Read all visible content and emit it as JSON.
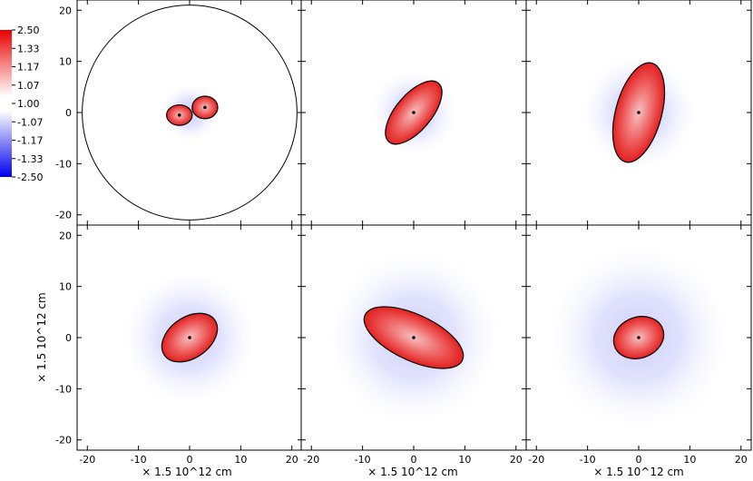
{
  "chart_data": {
    "type": "heatmap",
    "layout": "2 rows x 3 columns",
    "axis_range": [
      -22,
      22
    ],
    "x_ticks": [
      -20,
      -10,
      0,
      10,
      20
    ],
    "y_ticks": [
      -20,
      -10,
      0,
      10,
      20
    ],
    "x_label": "× 1.5 10^12 cm",
    "y_label": "× 1.5 10^12 cm",
    "contour_level": 1.0,
    "colorbar": {
      "labels": [
        "2.50",
        "1.33",
        "1.17",
        "1.07",
        "1.00",
        "-1.07",
        "-1.17",
        "-1.33",
        "-2.50"
      ],
      "high_color": "#e80000",
      "mid_color": "#ffffff",
      "low_color": "#0000ee"
    },
    "panels": [
      {
        "id": 1,
        "row": 1,
        "col": 1,
        "red_blobs": [
          {
            "x": 3.0,
            "y": 1.0,
            "rx": 2.5,
            "ry": 2.2,
            "rot": 0
          },
          {
            "x": -2.0,
            "y": -0.5,
            "rx": 2.5,
            "ry": 2.0,
            "rot": 0
          }
        ],
        "blue_halo": 6,
        "outer_ring": 21
      },
      {
        "id": 2,
        "row": 1,
        "col": 2,
        "red_blobs": [
          {
            "x": 0.0,
            "y": 0.0,
            "rx": 7.5,
            "ry": 3.5,
            "rot": 50
          }
        ],
        "blue_halo": 9,
        "outer_ring": 0
      },
      {
        "id": 3,
        "row": 1,
        "col": 3,
        "red_blobs": [
          {
            "x": 0.0,
            "y": 0.0,
            "rx": 10.0,
            "ry": 4.5,
            "rot": 75
          }
        ],
        "blue_halo": 12,
        "outer_ring": 0
      },
      {
        "id": 4,
        "row": 2,
        "col": 1,
        "red_blobs": [
          {
            "x": 0.0,
            "y": 0.0,
            "rx": 6.0,
            "ry": 4.0,
            "rot": 35
          }
        ],
        "blue_halo": 14,
        "outer_ring": 0
      },
      {
        "id": 5,
        "row": 2,
        "col": 2,
        "red_blobs": [
          {
            "x": 0.0,
            "y": 0.0,
            "rx": 10.5,
            "ry": 4.5,
            "rot": -25
          }
        ],
        "blue_halo": 18,
        "outer_ring": 0
      },
      {
        "id": 6,
        "row": 2,
        "col": 3,
        "red_blobs": [
          {
            "x": 0.0,
            "y": 0.0,
            "rx": 5.0,
            "ry": 4.0,
            "rot": 20
          }
        ],
        "blue_halo": 19,
        "outer_ring": 0
      }
    ]
  }
}
